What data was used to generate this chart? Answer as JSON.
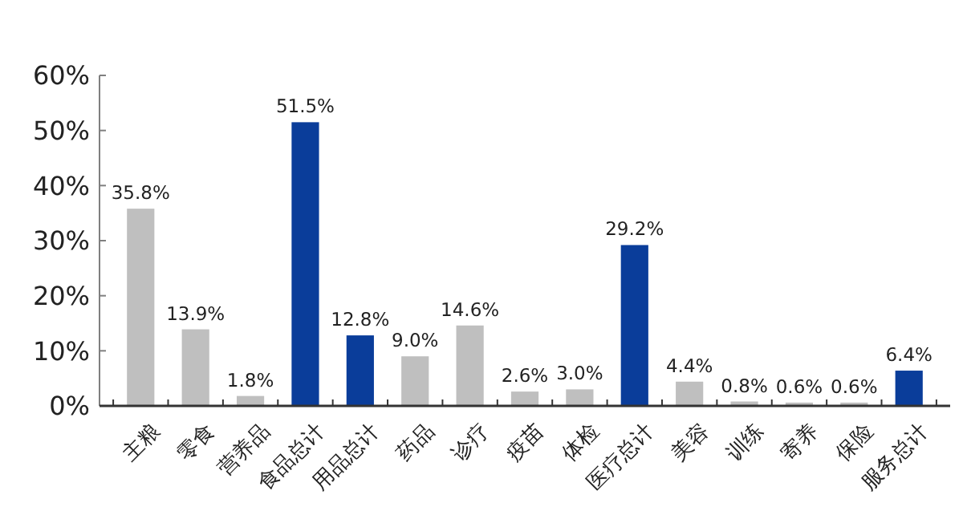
{
  "chart_data": {
    "type": "bar",
    "categories": [
      "主粮",
      "零食",
      "营养品",
      "食品总计",
      "用品总计",
      "药品",
      "诊疗",
      "疫苗",
      "体检",
      "医疗总计",
      "美容",
      "训练",
      "寄养",
      "保险",
      "服务总计"
    ],
    "values": [
      35.8,
      13.9,
      1.8,
      51.5,
      12.8,
      9.0,
      14.6,
      2.6,
      3.0,
      29.2,
      4.4,
      0.8,
      0.6,
      0.6,
      6.4
    ],
    "colors": [
      "#bfbfbf",
      "#bfbfbf",
      "#bfbfbf",
      "#0a3d9a",
      "#0a3d9a",
      "#bfbfbf",
      "#bfbfbf",
      "#bfbfbf",
      "#bfbfbf",
      "#0a3d9a",
      "#bfbfbf",
      "#bfbfbf",
      "#bfbfbf",
      "#bfbfbf",
      "#0a3d9a"
    ],
    "value_labels": [
      "35.8%",
      "13.9%",
      "1.8%",
      "51.5%",
      "12.8%",
      "9.0%",
      "14.6%",
      "2.6%",
      "3.0%",
      "29.2%",
      "4.4%",
      "0.8%",
      "0.6%",
      "0.6%",
      "6.4%"
    ],
    "ylim": [
      0,
      60
    ],
    "yticks": [
      {
        "value": 0,
        "label": "0%"
      },
      {
        "value": 10,
        "label": "10%"
      },
      {
        "value": 20,
        "label": "20%"
      },
      {
        "value": 30,
        "label": "30%"
      },
      {
        "value": 40,
        "label": "40%"
      },
      {
        "value": 50,
        "label": "50%"
      },
      {
        "value": 60,
        "label": "60%"
      }
    ],
    "grid": false
  }
}
